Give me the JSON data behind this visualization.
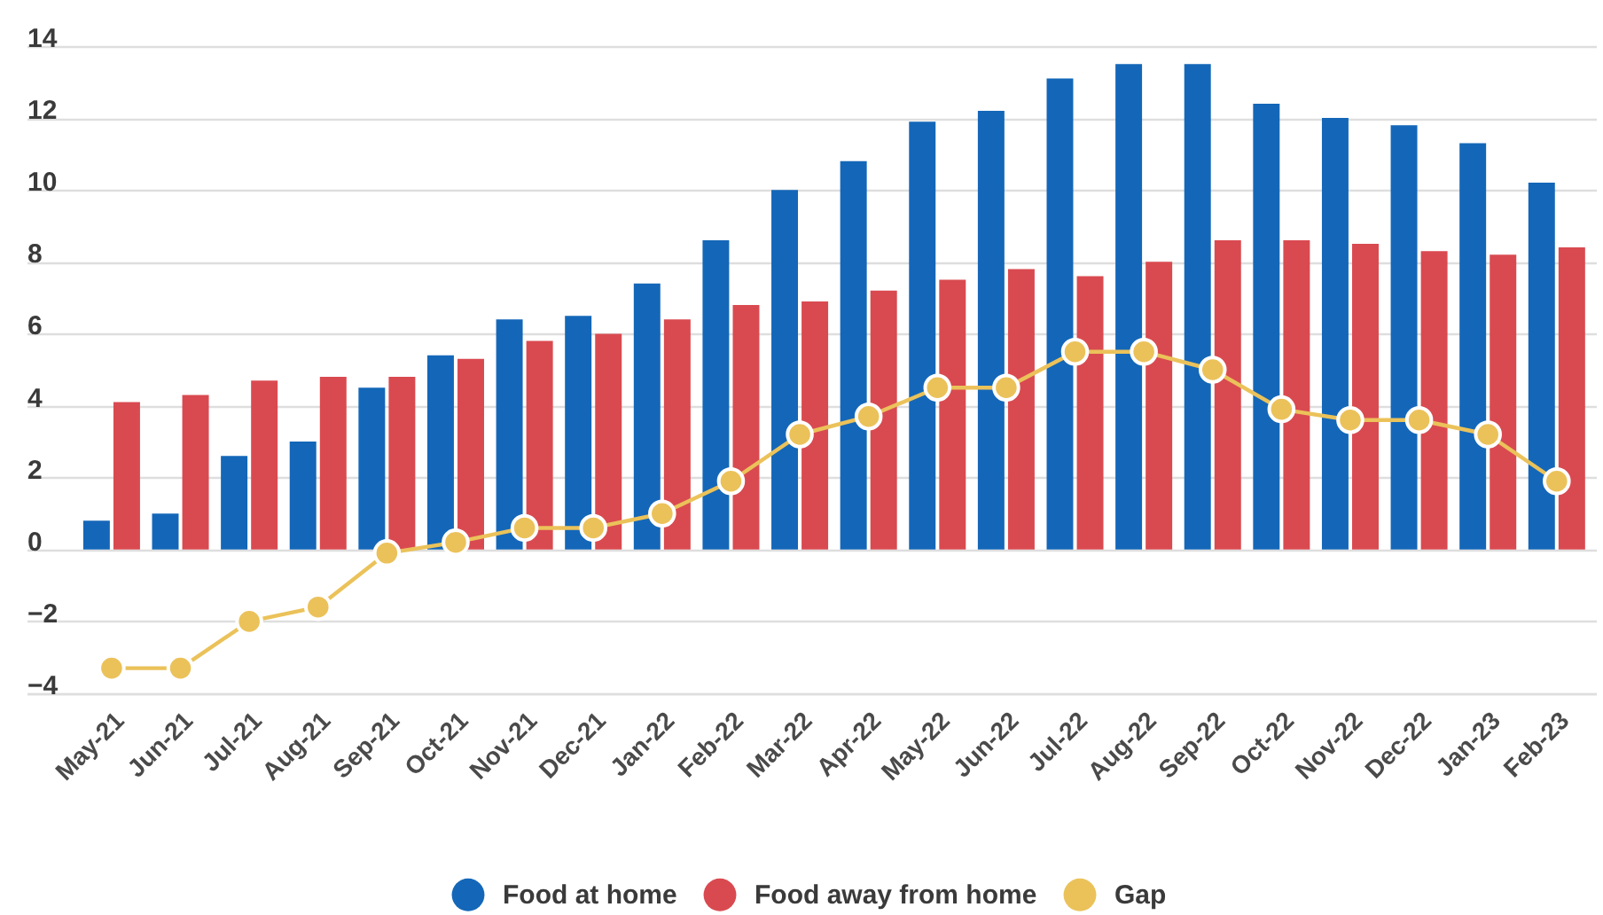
{
  "chart_data": {
    "type": "bar",
    "categories": [
      "May-21",
      "Jun-21",
      "Jul-21",
      "Aug-21",
      "Sep-21",
      "Oct-21",
      "Nov-21",
      "Dec-21",
      "Jan-22",
      "Feb-22",
      "Mar-22",
      "Apr-22",
      "May-22",
      "Jun-22",
      "Jul-22",
      "Aug-22",
      "Sep-22",
      "Oct-22",
      "Nov-22",
      "Dec-22",
      "Jan-23",
      "Feb-23"
    ],
    "series": [
      {
        "name": "Food at home",
        "color": "#1467b8",
        "values": [
          0.8,
          1.0,
          2.6,
          3.0,
          4.5,
          5.4,
          6.4,
          6.5,
          7.4,
          8.6,
          10.0,
          10.8,
          11.9,
          12.2,
          13.1,
          13.5,
          13.5,
          12.4,
          12.0,
          11.8,
          11.3,
          10.2
        ]
      },
      {
        "name": "Food away from home",
        "color": "#d94a50",
        "values": [
          4.1,
          4.3,
          4.7,
          4.8,
          4.8,
          5.3,
          5.8,
          6.0,
          6.4,
          6.8,
          6.9,
          7.2,
          7.5,
          7.8,
          7.6,
          8.0,
          8.6,
          8.6,
          8.5,
          8.3,
          8.2,
          8.4
        ]
      },
      {
        "name": "Gap",
        "type": "line",
        "color": "#ebc25a",
        "values": [
          -3.3,
          -3.3,
          -2.0,
          -1.6,
          -0.1,
          0.2,
          0.6,
          0.6,
          1.0,
          1.9,
          3.2,
          3.7,
          4.5,
          4.5,
          5.5,
          5.5,
          5.0,
          3.9,
          3.6,
          3.6,
          3.2,
          1.9
        ]
      }
    ],
    "ylim": [
      -4,
      14
    ],
    "yticks": [
      -4,
      -2,
      0,
      2,
      4,
      6,
      8,
      10,
      12,
      14
    ],
    "grid": "y",
    "legend": "bottom",
    "marker": "circle",
    "line_style": "solid"
  }
}
